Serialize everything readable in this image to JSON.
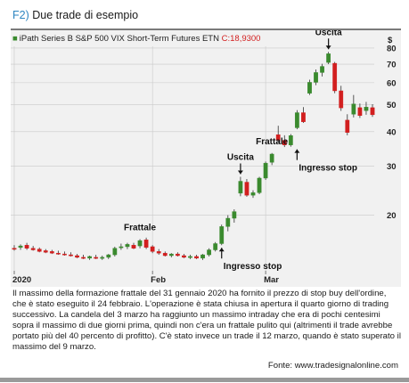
{
  "figure": {
    "number": "F2)",
    "title": "Due trade di esempio",
    "caption": "Il massimo della formazione frattale del 31 gennaio 2020 ha fornito il prezzo di stop buy dell'ordine, che è stato eseguito il 24 febbraio. L'operazione è stata chiusa in apertura il quarto giorno di trading successivo. La candela del 3 marzo ha raggiunto un massimo intraday che era di pochi centesimi sopra il massimo di due giorni prima, quindi non c'era un frattale pulito qui (altrimenti il trade avrebbe portato più del 40 percento di profitto). C'è stato invece un trade il 12 marzo, quando è stato superato il massimo del 9 marzo.",
    "source": "Fonte: www.tradesignalonline.com"
  },
  "chart_data": {
    "type": "candlestick",
    "series_name": "iPath Series B S&P 500 VIX Short-Term Futures ETN",
    "close_label": "C:18,9300",
    "y_currency_label": "$",
    "y_scale": "log",
    "ylim": [
      12.8,
      90
    ],
    "y_ticks": [
      "80",
      "70",
      "60",
      "50",
      "40",
      "30",
      "20"
    ],
    "y_tick_values": [
      80,
      70,
      60,
      50,
      40,
      30,
      20
    ],
    "x_ticks": [
      "2020",
      "Feb",
      "Mar"
    ],
    "x_tick_index": [
      0,
      22,
      40
    ],
    "colors": {
      "up": "#3a8a2e",
      "down": "#d21f1f",
      "grid": "#c9c9c9",
      "background": "#f1f1f1"
    },
    "candles": [
      {
        "o": 15.2,
        "h": 15.6,
        "l": 14.9,
        "c": 15.1
      },
      {
        "o": 15.3,
        "h": 15.7,
        "l": 15.0,
        "c": 15.5
      },
      {
        "o": 15.6,
        "h": 15.9,
        "l": 15.0,
        "c": 15.2
      },
      {
        "o": 15.2,
        "h": 15.5,
        "l": 14.9,
        "c": 15.0
      },
      {
        "o": 15.1,
        "h": 15.3,
        "l": 14.7,
        "c": 14.8
      },
      {
        "o": 14.9,
        "h": 15.1,
        "l": 14.6,
        "c": 14.7
      },
      {
        "o": 14.8,
        "h": 15.0,
        "l": 14.5,
        "c": 14.6
      },
      {
        "o": 14.6,
        "h": 14.9,
        "l": 14.4,
        "c": 14.5
      },
      {
        "o": 14.5,
        "h": 14.8,
        "l": 14.3,
        "c": 14.4
      },
      {
        "o": 14.4,
        "h": 14.7,
        "l": 14.2,
        "c": 14.3
      },
      {
        "o": 14.3,
        "h": 14.5,
        "l": 14.0,
        "c": 14.1
      },
      {
        "o": 14.1,
        "h": 14.4,
        "l": 13.9,
        "c": 14.0
      },
      {
        "o": 14.0,
        "h": 14.3,
        "l": 13.8,
        "c": 14.2
      },
      {
        "o": 14.1,
        "h": 14.4,
        "l": 13.9,
        "c": 14.0
      },
      {
        "o": 14.0,
        "h": 14.3,
        "l": 13.8,
        "c": 14.1
      },
      {
        "o": 14.1,
        "h": 14.5,
        "l": 13.9,
        "c": 14.4
      },
      {
        "o": 14.4,
        "h": 15.4,
        "l": 14.2,
        "c": 15.2
      },
      {
        "o": 15.3,
        "h": 15.8,
        "l": 15.0,
        "c": 15.4
      },
      {
        "o": 15.4,
        "h": 15.9,
        "l": 15.1,
        "c": 15.7
      },
      {
        "o": 15.6,
        "h": 15.9,
        "l": 15.1,
        "c": 15.2
      },
      {
        "o": 15.5,
        "h": 16.4,
        "l": 15.2,
        "c": 16.2
      },
      {
        "o": 16.3,
        "h": 16.6,
        "l": 15.1,
        "c": 15.3
      },
      {
        "o": 15.4,
        "h": 15.6,
        "l": 14.6,
        "c": 14.8
      },
      {
        "o": 14.8,
        "h": 15.1,
        "l": 14.4,
        "c": 14.6
      },
      {
        "o": 14.6,
        "h": 14.8,
        "l": 14.2,
        "c": 14.3
      },
      {
        "o": 14.3,
        "h": 14.6,
        "l": 14.1,
        "c": 14.5
      },
      {
        "o": 14.5,
        "h": 14.7,
        "l": 14.2,
        "c": 14.3
      },
      {
        "o": 14.3,
        "h": 14.5,
        "l": 14.0,
        "c": 14.1
      },
      {
        "o": 14.1,
        "h": 14.4,
        "l": 13.9,
        "c": 14.2
      },
      {
        "o": 14.2,
        "h": 14.4,
        "l": 13.9,
        "c": 14.0
      },
      {
        "o": 14.0,
        "h": 14.5,
        "l": 13.8,
        "c": 14.4
      },
      {
        "o": 14.4,
        "h": 15.2,
        "l": 14.2,
        "c": 15.0
      },
      {
        "o": 15.0,
        "h": 16.0,
        "l": 14.8,
        "c": 15.8
      },
      {
        "o": 15.8,
        "h": 18.5,
        "l": 15.6,
        "c": 18.2
      },
      {
        "o": 18.2,
        "h": 20.0,
        "l": 17.5,
        "c": 19.5
      },
      {
        "o": 19.5,
        "h": 21.0,
        "l": 18.8,
        "c": 20.6
      },
      {
        "o": 24.0,
        "h": 27.5,
        "l": 23.4,
        "c": 26.5
      },
      {
        "o": 26.3,
        "h": 27.0,
        "l": 23.3,
        "c": 23.6
      },
      {
        "o": 23.6,
        "h": 24.6,
        "l": 23.1,
        "c": 24.1
      },
      {
        "o": 24.1,
        "h": 27.5,
        "l": 23.8,
        "c": 27.2
      },
      {
        "o": 27.2,
        "h": 31.2,
        "l": 26.8,
        "c": 30.8
      },
      {
        "o": 31.0,
        "h": 33.5,
        "l": 30.3,
        "c": 33.2
      },
      {
        "o": 39.0,
        "h": 42.0,
        "l": 36.5,
        "c": 37.2
      },
      {
        "o": 37.2,
        "h": 38.8,
        "l": 35.2,
        "c": 35.8
      },
      {
        "o": 35.8,
        "h": 39.2,
        "l": 35.3,
        "c": 38.7
      },
      {
        "o": 41.3,
        "h": 47.8,
        "l": 40.8,
        "c": 46.8
      },
      {
        "o": 46.8,
        "h": 49.0,
        "l": 43.0,
        "c": 43.4
      },
      {
        "o": 55.0,
        "h": 61.5,
        "l": 54.2,
        "c": 60.2
      },
      {
        "o": 60.2,
        "h": 67.0,
        "l": 58.8,
        "c": 65.3
      },
      {
        "o": 65.3,
        "h": 70.2,
        "l": 63.2,
        "c": 68.7
      },
      {
        "o": 71.0,
        "h": 77.5,
        "l": 70.0,
        "c": 76.3
      },
      {
        "o": 70.5,
        "h": 71.3,
        "l": 55.0,
        "c": 56.1
      },
      {
        "o": 56.1,
        "h": 58.5,
        "l": 47.5,
        "c": 48.7
      },
      {
        "o": 44.0,
        "h": 46.2,
        "l": 38.8,
        "c": 39.7
      },
      {
        "o": 46.2,
        "h": 54.2,
        "l": 45.0,
        "c": 50.3
      },
      {
        "o": 48.8,
        "h": 50.5,
        "l": 44.8,
        "c": 45.7
      },
      {
        "o": 47.6,
        "h": 51.2,
        "l": 46.0,
        "c": 49.0
      },
      {
        "o": 48.8,
        "h": 50.2,
        "l": 45.2,
        "c": 46.0
      }
    ],
    "annotations": [
      {
        "text": "Frattale",
        "x_index": 20,
        "price": 16.4,
        "kind": "label-above"
      },
      {
        "text": "Ingresso stop",
        "x_index": 33,
        "price": 15.6,
        "kind": "arrow-below"
      },
      {
        "text": "Uscita",
        "x_index": 36,
        "price": 27.5,
        "kind": "arrow-above"
      },
      {
        "text": "Frattale",
        "x_index": 41,
        "price": 33.5,
        "kind": "label-above"
      },
      {
        "text": "Ingresso stop",
        "x_index": 45,
        "price": 35.3,
        "kind": "arrow-below"
      },
      {
        "text": "Uscita",
        "x_index": 50,
        "price": 77.5,
        "kind": "arrow-above"
      }
    ]
  }
}
